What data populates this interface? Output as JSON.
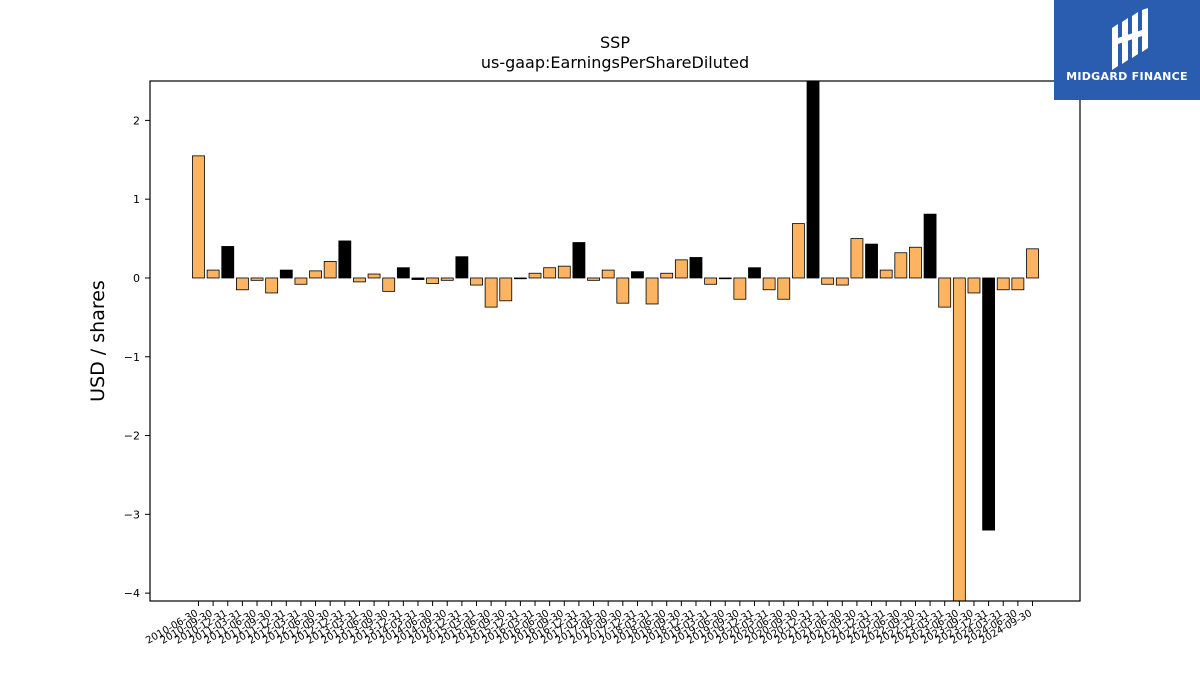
{
  "logo": {
    "brand_text": "MIDGARD FINANCE"
  },
  "chart_data": {
    "type": "bar",
    "title": "SSP",
    "subtitle": "us-gaap:EarningsPerShareDiluted",
    "xlabel": "",
    "ylabel": "USD / shares",
    "ylim": [
      -4.1,
      2.5
    ],
    "yticks": [
      2,
      1,
      0,
      -1,
      -2,
      -3,
      -4
    ],
    "colors": {
      "primary": "#fdb462",
      "alternate": "#000000",
      "edge": "#000000"
    },
    "categories": [
      "2010-06-30",
      "2010-09-30",
      "2010-12-31",
      "2011-03-31",
      "2011-06-30",
      "2011-09-30",
      "2011-12-31",
      "2012-03-31",
      "2012-06-30",
      "2012-09-30",
      "2012-12-31",
      "2013-03-31",
      "2013-06-30",
      "2013-09-30",
      "2013-12-31",
      "2014-03-31",
      "2014-06-30",
      "2014-09-30",
      "2014-12-31",
      "2015-03-31",
      "2015-06-30",
      "2015-09-30",
      "2015-12-31",
      "2016-03-31",
      "2016-06-30",
      "2016-09-30",
      "2016-12-31",
      "2017-03-31",
      "2017-06-30",
      "2017-09-30",
      "2017-12-31",
      "2018-03-31",
      "2018-06-30",
      "2018-09-30",
      "2018-12-31",
      "2019-03-31",
      "2019-06-30",
      "2019-09-30",
      "2019-12-31",
      "2020-03-31",
      "2020-06-30",
      "2020-09-30",
      "2020-12-31",
      "2021-03-31",
      "2021-06-30",
      "2021-09-30",
      "2021-12-31",
      "2022-03-31",
      "2022-06-30",
      "2022-09-30",
      "2022-12-31",
      "2023-03-31",
      "2023-06-30",
      "2023-09-30",
      "2023-12-31",
      "2024-03-31",
      "2024-06-30",
      "2024-09-30"
    ],
    "values": [
      1.55,
      0.1,
      0.4,
      -0.15,
      -0.03,
      -0.19,
      0.1,
      -0.08,
      0.09,
      0.21,
      0.47,
      -0.05,
      0.05,
      -0.17,
      0.13,
      -0.02,
      -0.07,
      -0.03,
      0.27,
      -0.09,
      -0.37,
      -0.29,
      -0.01,
      0.06,
      0.13,
      0.15,
      0.45,
      -0.03,
      0.1,
      -0.32,
      0.08,
      -0.33,
      0.06,
      0.23,
      0.26,
      -0.08,
      -0.01,
      -0.27,
      0.13,
      -0.15,
      -0.27,
      0.69,
      2.5,
      -0.08,
      -0.09,
      0.5,
      0.43,
      0.1,
      0.32,
      0.39,
      0.81,
      -0.37,
      -4.1,
      -0.19,
      -3.2,
      -0.15,
      -0.15,
      0.37
    ],
    "bar_colors": [
      "primary",
      "primary",
      "alternate",
      "primary",
      "primary",
      "primary",
      "alternate",
      "primary",
      "primary",
      "primary",
      "alternate",
      "primary",
      "primary",
      "primary",
      "alternate",
      "alternate",
      "primary",
      "primary",
      "alternate",
      "primary",
      "primary",
      "primary",
      "primary",
      "primary",
      "primary",
      "primary",
      "alternate",
      "primary",
      "primary",
      "primary",
      "alternate",
      "primary",
      "primary",
      "primary",
      "alternate",
      "primary",
      "alternate",
      "primary",
      "alternate",
      "primary",
      "primary",
      "primary",
      "alternate",
      "primary",
      "primary",
      "primary",
      "alternate",
      "primary",
      "primary",
      "primary",
      "alternate",
      "primary",
      "primary",
      "primary",
      "alternate",
      "primary",
      "primary",
      "primary"
    ]
  }
}
